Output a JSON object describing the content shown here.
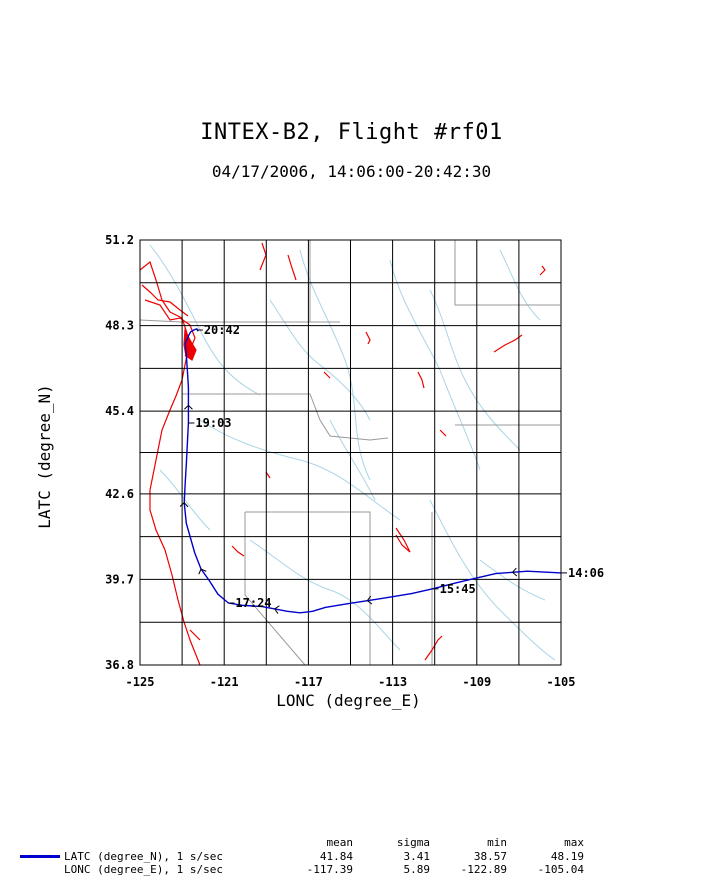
{
  "header": {
    "title": "INTEX-B2, Flight #rf01",
    "subtitle": "04/17/2006, 14:06:00-20:42:30"
  },
  "colors": {
    "track": "#0000cc",
    "coast": "#ee0000",
    "rivers": "#aad4e6",
    "borders": "#999999",
    "grid": "#000000"
  },
  "chart_data": {
    "type": "line",
    "title": "INTEX-B2, Flight #rf01",
    "subtitle": "04/17/2006, 14:06:00-20:42:30",
    "xlabel": "LONC (degree_E)",
    "ylabel": "LATC (degree_N)",
    "xlim": [
      -125,
      -105
    ],
    "ylim": [
      36.8,
      51.2
    ],
    "xticks": [
      "-125",
      "-121",
      "-117",
      "-113",
      "-109",
      "-105"
    ],
    "xtick_values": [
      -125,
      -121,
      -117,
      -113,
      -109,
      -105
    ],
    "yticks": [
      "36.8",
      "39.7",
      "42.6",
      "45.4",
      "48.3",
      "51.2"
    ],
    "ytick_values": [
      36.8,
      39.7,
      42.6,
      45.4,
      48.3,
      51.2
    ],
    "grid": true,
    "series": [
      {
        "name": "LATC (degree_N), 1 s/sec",
        "x": [
          -105.0,
          -105.8,
          -106.6,
          -107.3,
          -108.1,
          -109.0,
          -110.0,
          -111.1,
          -112.1,
          -113.1,
          -114.2,
          -115.2,
          -116.2,
          -116.8,
          -117.4,
          -118.0,
          -118.6,
          -119.2,
          -120.1,
          -120.8,
          -121.3,
          -121.7,
          -122.1,
          -122.4,
          -122.6,
          -122.8,
          -122.9,
          -122.85,
          -122.8,
          -122.75,
          -122.7,
          -122.7,
          -122.7,
          -122.75,
          -122.8,
          -122.85,
          -122.7,
          -122.6,
          -122.45,
          -122.3,
          -122.25
        ],
        "y": [
          39.92,
          39.95,
          39.98,
          39.94,
          39.9,
          39.75,
          39.58,
          39.38,
          39.22,
          39.1,
          38.98,
          38.87,
          38.75,
          38.62,
          38.57,
          38.62,
          38.7,
          38.78,
          38.82,
          38.9,
          39.2,
          39.65,
          40.05,
          40.6,
          41.1,
          41.6,
          42.3,
          43.0,
          43.6,
          44.3,
          45.0,
          45.6,
          46.2,
          46.8,
          47.3,
          47.7,
          47.95,
          48.08,
          48.15,
          48.19,
          48.12
        ]
      }
    ],
    "time_labels": [
      {
        "text": "14:06",
        "x": -105.0,
        "y": 39.92
      },
      {
        "text": "15:45",
        "x": -111.1,
        "y": 39.38
      },
      {
        "text": "17:24",
        "x": -120.8,
        "y": 38.9
      },
      {
        "text": "19:03",
        "x": -122.7,
        "y": 45.0
      },
      {
        "text": "20:42",
        "x": -122.3,
        "y": 48.15
      }
    ]
  },
  "stats": {
    "columns": [
      "mean",
      "sigma",
      "min",
      "max"
    ],
    "rows": [
      {
        "label": "LATC (degree_N), 1 s/sec",
        "mean": "41.84",
        "sigma": "3.41",
        "min": "38.57",
        "max": "48.19"
      },
      {
        "label": "LONC (degree_E), 1 s/sec",
        "mean": "-117.39",
        "sigma": "5.89",
        "min": "-122.89",
        "max": "-105.04"
      }
    ]
  }
}
